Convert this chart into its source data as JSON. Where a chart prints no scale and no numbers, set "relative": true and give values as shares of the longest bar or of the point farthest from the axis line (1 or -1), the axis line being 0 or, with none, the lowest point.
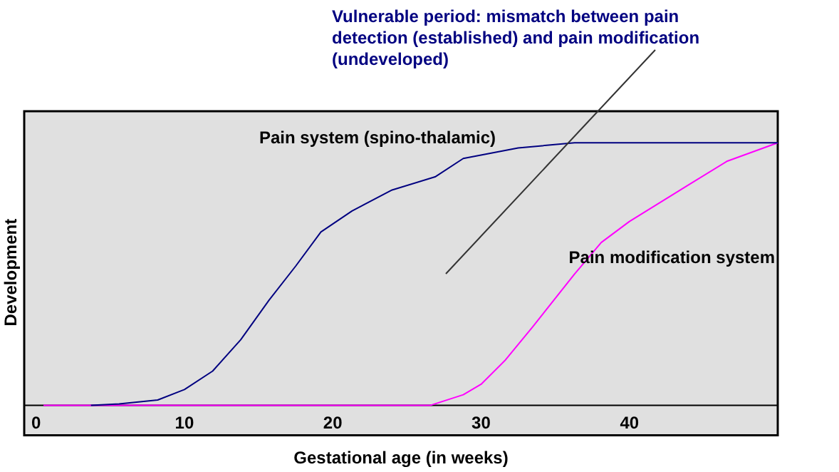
{
  "chart_data": {
    "type": "line",
    "xlabel": "Gestational age (in weeks)",
    "ylabel": "Development",
    "relative": true,
    "xlim": [
      -0.8,
      50
    ],
    "xticks": [
      0,
      10,
      20,
      30,
      40
    ],
    "grid": false,
    "legend": false,
    "marker": "none",
    "line_style": "solid",
    "annotations": [
      "Vulnerable period: mismatch between pain detection (established) and pain modification (undeveloped)"
    ],
    "series": [
      {
        "name": "Pain system (spino-thalamic)",
        "color": "#000080",
        "x": [
          3.7,
          5.6,
          8.2,
          10,
          11.9,
          13.8,
          15.7,
          17.5,
          19.2,
          21.3,
          24,
          26.9,
          28.8,
          32.5,
          36.3,
          41,
          50
        ],
        "values": [
          0,
          0.005,
          0.02,
          0.06,
          0.13,
          0.25,
          0.4,
          0.53,
          0.66,
          0.74,
          0.82,
          0.87,
          0.94,
          0.98,
          1,
          1,
          1
        ]
      },
      {
        "name": "Pain modification system",
        "color": "#ff00ff",
        "x": [
          0.5,
          26.6,
          28.8,
          30,
          31.6,
          33.5,
          36.3,
          38.1,
          40,
          44,
          46.6,
          50
        ],
        "values": [
          0,
          0,
          0.04,
          0.08,
          0.17,
          0.3,
          0.5,
          0.62,
          0.7,
          0.84,
          0.93,
          1
        ]
      }
    ]
  }
}
